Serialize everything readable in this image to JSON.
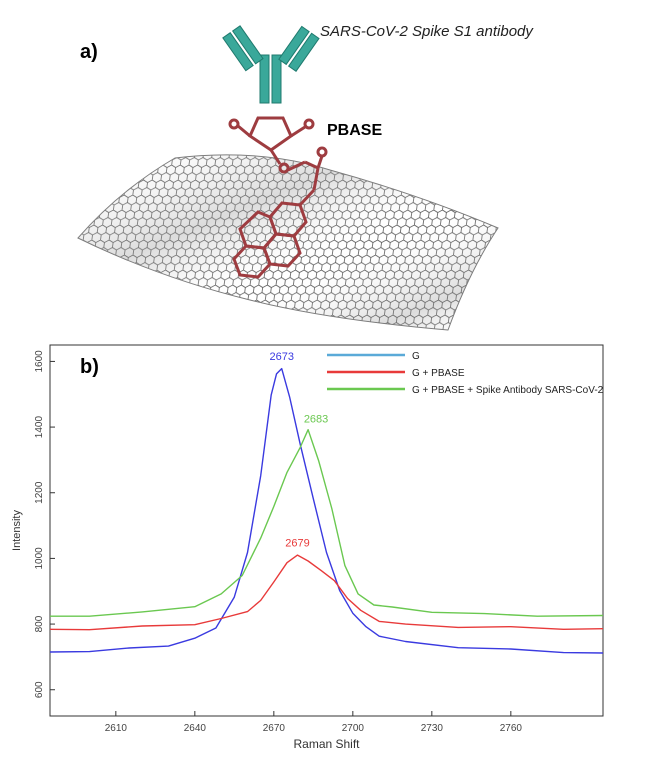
{
  "panel_a": {
    "label": "a)",
    "antibody_label": "SARS-CoV-2 Spike S1 antibody",
    "linker_label": "PBASE",
    "colors": {
      "antibody": "#3aa89a",
      "molecule": "#9e3c40",
      "graphene": "#555555"
    }
  },
  "chart_data": {
    "type": "line",
    "panel_label": "b)",
    "title": "",
    "xlabel": "Raman Shift",
    "ylabel": "Intensity",
    "xlim": [
      2585,
      2795
    ],
    "ylim": [
      520,
      1650
    ],
    "xticks": [
      2610,
      2640,
      2670,
      2700,
      2730,
      2760
    ],
    "yticks": [
      600,
      800,
      1000,
      1200,
      1400,
      1600
    ],
    "grid": false,
    "legend_position": "top-right",
    "series": [
      {
        "name": "G",
        "color": "#3a3ae0",
        "legend_color": "#5aaad8",
        "x": [
          2585,
          2600,
          2615,
          2630,
          2640,
          2648,
          2655,
          2660,
          2665,
          2669,
          2671,
          2673,
          2676,
          2680,
          2685,
          2690,
          2695,
          2700,
          2705,
          2710,
          2720,
          2740,
          2760,
          2780,
          2795
        ],
        "y": [
          713,
          718,
          725,
          735,
          755,
          790,
          880,
          1020,
          1250,
          1500,
          1560,
          1580,
          1490,
          1350,
          1180,
          1020,
          900,
          835,
          790,
          765,
          745,
          730,
          722,
          715,
          710
        ],
        "peak_x": 2673,
        "peak_y": 1580,
        "peak_label": "2673"
      },
      {
        "name": "G + PBASE",
        "color": "#e83a3a",
        "legend_color": "#e83a3a",
        "x": [
          2585,
          2600,
          2620,
          2640,
          2650,
          2660,
          2665,
          2670,
          2675,
          2679,
          2683,
          2688,
          2693,
          2698,
          2703,
          2710,
          2720,
          2740,
          2760,
          2780,
          2795
        ],
        "y": [
          782,
          785,
          792,
          800,
          815,
          840,
          870,
          930,
          985,
          1012,
          990,
          965,
          930,
          880,
          840,
          810,
          798,
          792,
          790,
          786,
          784
        ],
        "peak_x": 2679,
        "peak_y": 1012,
        "peak_label": "2679"
      },
      {
        "name": "G + PBASE + Spike Antibody SARS-CoV-2",
        "color": "#6ac850",
        "legend_color": "#6ac850",
        "x": [
          2585,
          2600,
          2620,
          2640,
          2650,
          2658,
          2665,
          2670,
          2675,
          2680,
          2683,
          2687,
          2692,
          2697,
          2702,
          2708,
          2715,
          2730,
          2750,
          2770,
          2795
        ],
        "y": [
          822,
          826,
          835,
          855,
          890,
          950,
          1060,
          1160,
          1260,
          1340,
          1390,
          1300,
          1150,
          980,
          890,
          860,
          850,
          838,
          830,
          826,
          824
        ],
        "peak_x": 2683,
        "peak_y": 1390,
        "peak_label": "2683"
      }
    ]
  }
}
